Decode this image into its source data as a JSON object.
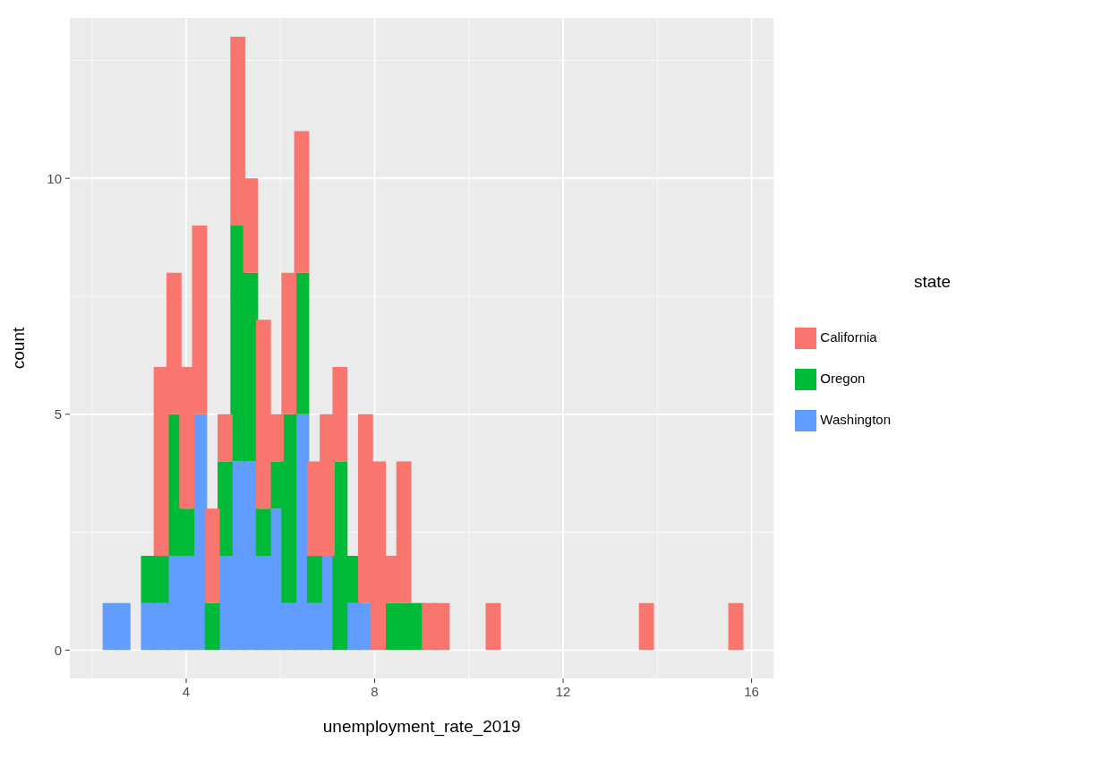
{
  "chart_data": {
    "type": "bar",
    "xlabel": "unemployment_rate_2019",
    "ylabel": "count",
    "legend_title": "state",
    "stacked": true,
    "legend": "right",
    "grid": true,
    "x": [
      2.381,
      2.652,
      2.923,
      3.194,
      3.465,
      3.736,
      4.007,
      4.278,
      4.549,
      4.82,
      5.091,
      5.362,
      5.633,
      5.904,
      6.175,
      6.446,
      6.717,
      6.988,
      7.259,
      7.53,
      7.801,
      8.072,
      8.343,
      8.614,
      8.885,
      9.156,
      9.427,
      9.698,
      9.969,
      10.24,
      10.511,
      10.782,
      11.053,
      11.324,
      11.595,
      11.866,
      12.137,
      12.408,
      12.679,
      12.95,
      13.221,
      13.492,
      13.763,
      14.034,
      14.305,
      14.576,
      14.847,
      15.118,
      15.389,
      15.66
    ],
    "series": [
      {
        "name": "Washington",
        "color": "#619cff",
        "values": [
          1,
          1,
          0,
          1,
          1,
          2,
          2,
          5,
          0,
          2,
          4,
          4,
          2,
          3,
          1,
          5,
          1,
          2,
          0,
          1,
          1,
          0,
          0,
          0,
          0,
          0,
          0,
          0,
          0,
          0,
          0,
          0,
          0,
          0,
          0,
          0,
          0,
          0,
          0,
          0,
          0,
          0,
          0,
          0,
          0,
          0,
          0,
          0,
          0,
          0
        ]
      },
      {
        "name": "Oregon",
        "color": "#00ba38",
        "values": [
          0,
          0,
          0,
          1,
          1,
          3,
          1,
          0,
          1,
          2,
          5,
          4,
          1,
          1,
          4,
          3,
          1,
          0,
          4,
          1,
          0,
          0,
          1,
          1,
          1,
          0,
          0,
          0,
          0,
          0,
          0,
          0,
          0,
          0,
          0,
          0,
          0,
          0,
          0,
          0,
          0,
          0,
          0,
          0,
          0,
          0,
          0,
          0,
          0,
          0
        ]
      },
      {
        "name": "California",
        "color": "#f8766d",
        "values": [
          0,
          0,
          0,
          0,
          4,
          3,
          3,
          4,
          2,
          1,
          4,
          2,
          4,
          1,
          3,
          3,
          2,
          3,
          2,
          0,
          4,
          4,
          1,
          3,
          0,
          1,
          1,
          0,
          0,
          0,
          1,
          0,
          0,
          0,
          0,
          0,
          0,
          0,
          0,
          0,
          0,
          0,
          1,
          0,
          0,
          0,
          0,
          0,
          0,
          1
        ]
      }
    ],
    "xlim": [
      1.53,
      16.47
    ],
    "xticks": [
      4,
      8,
      12,
      16
    ],
    "ylim": [
      -0.6,
      13.4
    ],
    "yticks": [
      0,
      5,
      10
    ]
  }
}
